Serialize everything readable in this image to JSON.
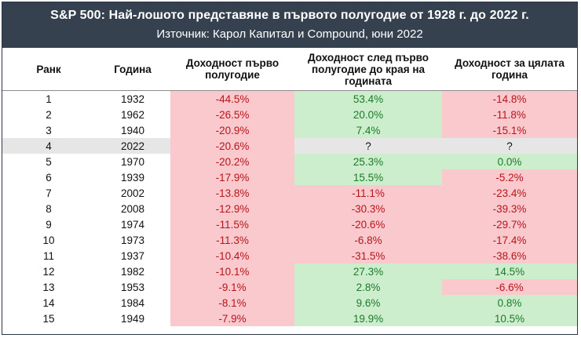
{
  "header": {
    "title": "S&P 500: Най-лошото представяне в първото полугодие от 1928 г. до 2022 г.",
    "subtitle": "Източник: Карол Капитал и Compound, юни 2022"
  },
  "chart_data": {
    "type": "table",
    "columns": [
      "Ранк",
      "Година",
      "Доходност първо полугодие",
      "Доходност след първо полугодие до края на годината",
      "Доходност за цялата година"
    ],
    "rows": [
      {
        "rank": "1",
        "year": "1932",
        "h1": "-44.5%",
        "h2": "53.4%",
        "full": "-14.8%"
      },
      {
        "rank": "2",
        "year": "1962",
        "h1": "-26.5%",
        "h2": "20.0%",
        "full": "-11.8%"
      },
      {
        "rank": "3",
        "year": "1940",
        "h1": "-20.9%",
        "h2": "7.4%",
        "full": "-15.1%"
      },
      {
        "rank": "4",
        "year": "2022",
        "h1": "-20.6%",
        "h2": "?",
        "full": "?"
      },
      {
        "rank": "5",
        "year": "1970",
        "h1": "-20.2%",
        "h2": "25.3%",
        "full": "0.0%"
      },
      {
        "rank": "6",
        "year": "1939",
        "h1": "-17.9%",
        "h2": "15.5%",
        "full": "-5.2%"
      },
      {
        "rank": "7",
        "year": "2002",
        "h1": "-13.8%",
        "h2": "-11.1%",
        "full": "-23.4%"
      },
      {
        "rank": "8",
        "year": "2008",
        "h1": "-12.9%",
        "h2": "-30.3%",
        "full": "-39.3%"
      },
      {
        "rank": "9",
        "year": "1974",
        "h1": "-11.5%",
        "h2": "-20.6%",
        "full": "-29.7%"
      },
      {
        "rank": "10",
        "year": "1973",
        "h1": "-11.3%",
        "h2": "-6.8%",
        "full": "-17.4%"
      },
      {
        "rank": "11",
        "year": "1937",
        "h1": "-10.4%",
        "h2": "-31.5%",
        "full": "-38.6%"
      },
      {
        "rank": "12",
        "year": "1982",
        "h1": "-10.1%",
        "h2": "27.3%",
        "full": "14.5%"
      },
      {
        "rank": "13",
        "year": "1953",
        "h1": "-9.1%",
        "h2": "2.8%",
        "full": "-6.6%"
      },
      {
        "rank": "14",
        "year": "1984",
        "h1": "-8.1%",
        "h2": "9.6%",
        "full": "0.8%"
      },
      {
        "rank": "15",
        "year": "1949",
        "h1": "-7.9%",
        "h2": "19.9%",
        "full": "10.5%"
      }
    ],
    "highlight_row_year": "2022"
  },
  "colors": {
    "header_bg": "#35414f",
    "negative_text": "#b5161b",
    "positive_text": "#1c7a2a",
    "negative_fill": "#f9c9cd",
    "positive_fill": "#cdeecd",
    "highlight_fill": "#e6e6e6"
  }
}
